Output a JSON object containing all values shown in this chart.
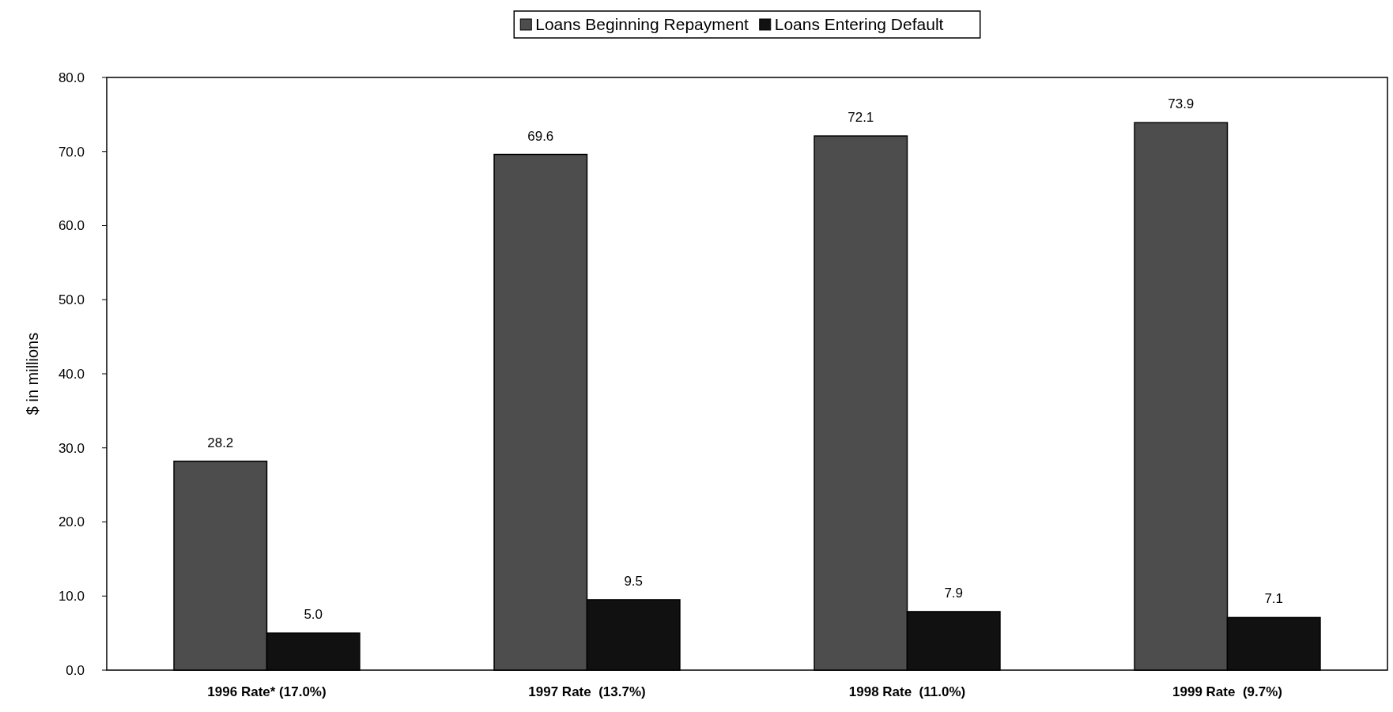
{
  "chart_data": {
    "type": "bar",
    "ylabel": "$ in millions",
    "categories": [
      "1996 Rate* (17.0%)",
      "1997 Rate  (13.7%)",
      "1998 Rate  (11.0%)",
      "1999 Rate  (9.7%)"
    ],
    "series": [
      {
        "name": "Loans Beginning Repayment",
        "color": "#4d4d4d",
        "values": [
          28.2,
          69.6,
          72.1,
          73.9
        ],
        "value_labels": [
          "28.2",
          "69.6",
          "72.1",
          "73.9"
        ]
      },
      {
        "name": "Loans Entering Default",
        "color": "#111111",
        "values": [
          5.0,
          9.5,
          7.9,
          7.1
        ],
        "value_labels": [
          "5.0",
          "9.5",
          "7.9",
          "7.1"
        ]
      }
    ],
    "ylim": [
      0,
      80
    ],
    "yticks": [
      {
        "value": 0,
        "label": "0.0"
      },
      {
        "value": 10,
        "label": "10.0"
      },
      {
        "value": 20,
        "label": "20.0"
      },
      {
        "value": 30,
        "label": "30.0"
      },
      {
        "value": 40,
        "label": "40.0"
      },
      {
        "value": 50,
        "label": "50.0"
      },
      {
        "value": 60,
        "label": "60.0"
      },
      {
        "value": 70,
        "label": "70.0"
      },
      {
        "value": 80,
        "label": "80.0"
      }
    ],
    "legend": "top",
    "grid": false
  }
}
